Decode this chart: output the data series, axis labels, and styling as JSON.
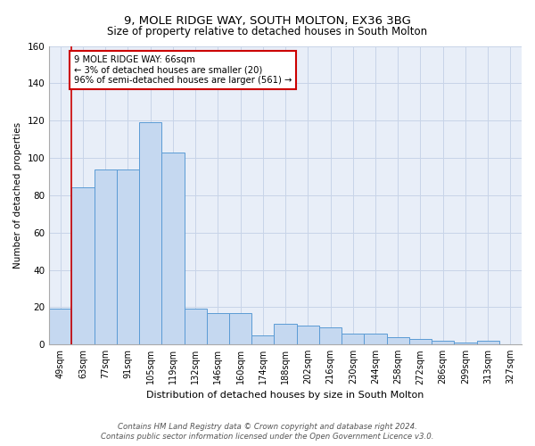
{
  "title": "9, MOLE RIDGE WAY, SOUTH MOLTON, EX36 3BG",
  "subtitle": "Size of property relative to detached houses in South Molton",
  "xlabel": "Distribution of detached houses by size in South Molton",
  "ylabel": "Number of detached properties",
  "categories": [
    "49sqm",
    "63sqm",
    "77sqm",
    "91sqm",
    "105sqm",
    "119sqm",
    "132sqm",
    "146sqm",
    "160sqm",
    "174sqm",
    "188sqm",
    "202sqm",
    "216sqm",
    "230sqm",
    "244sqm",
    "258sqm",
    "272sqm",
    "286sqm",
    "299sqm",
    "313sqm",
    "327sqm"
  ],
  "values": [
    19,
    84,
    94,
    94,
    119,
    103,
    19,
    17,
    17,
    5,
    11,
    10,
    9,
    6,
    6,
    4,
    3,
    2,
    1,
    2,
    0
  ],
  "bar_color": "#c5d8f0",
  "bar_edge_color": "#5b9bd5",
  "vline_x": 1,
  "vline_color": "#cc0000",
  "annotation_text": "9 MOLE RIDGE WAY: 66sqm\n← 3% of detached houses are smaller (20)\n96% of semi-detached houses are larger (561) →",
  "annotation_box_color": "white",
  "annotation_box_edge": "#cc0000",
  "ylim": [
    0,
    160
  ],
  "yticks": [
    0,
    20,
    40,
    60,
    80,
    100,
    120,
    140,
    160
  ],
  "grid_color": "#c8d4e8",
  "bg_color": "#e8eef8",
  "footer_line1": "Contains HM Land Registry data © Crown copyright and database right 2024.",
  "footer_line2": "Contains public sector information licensed under the Open Government Licence v3.0."
}
